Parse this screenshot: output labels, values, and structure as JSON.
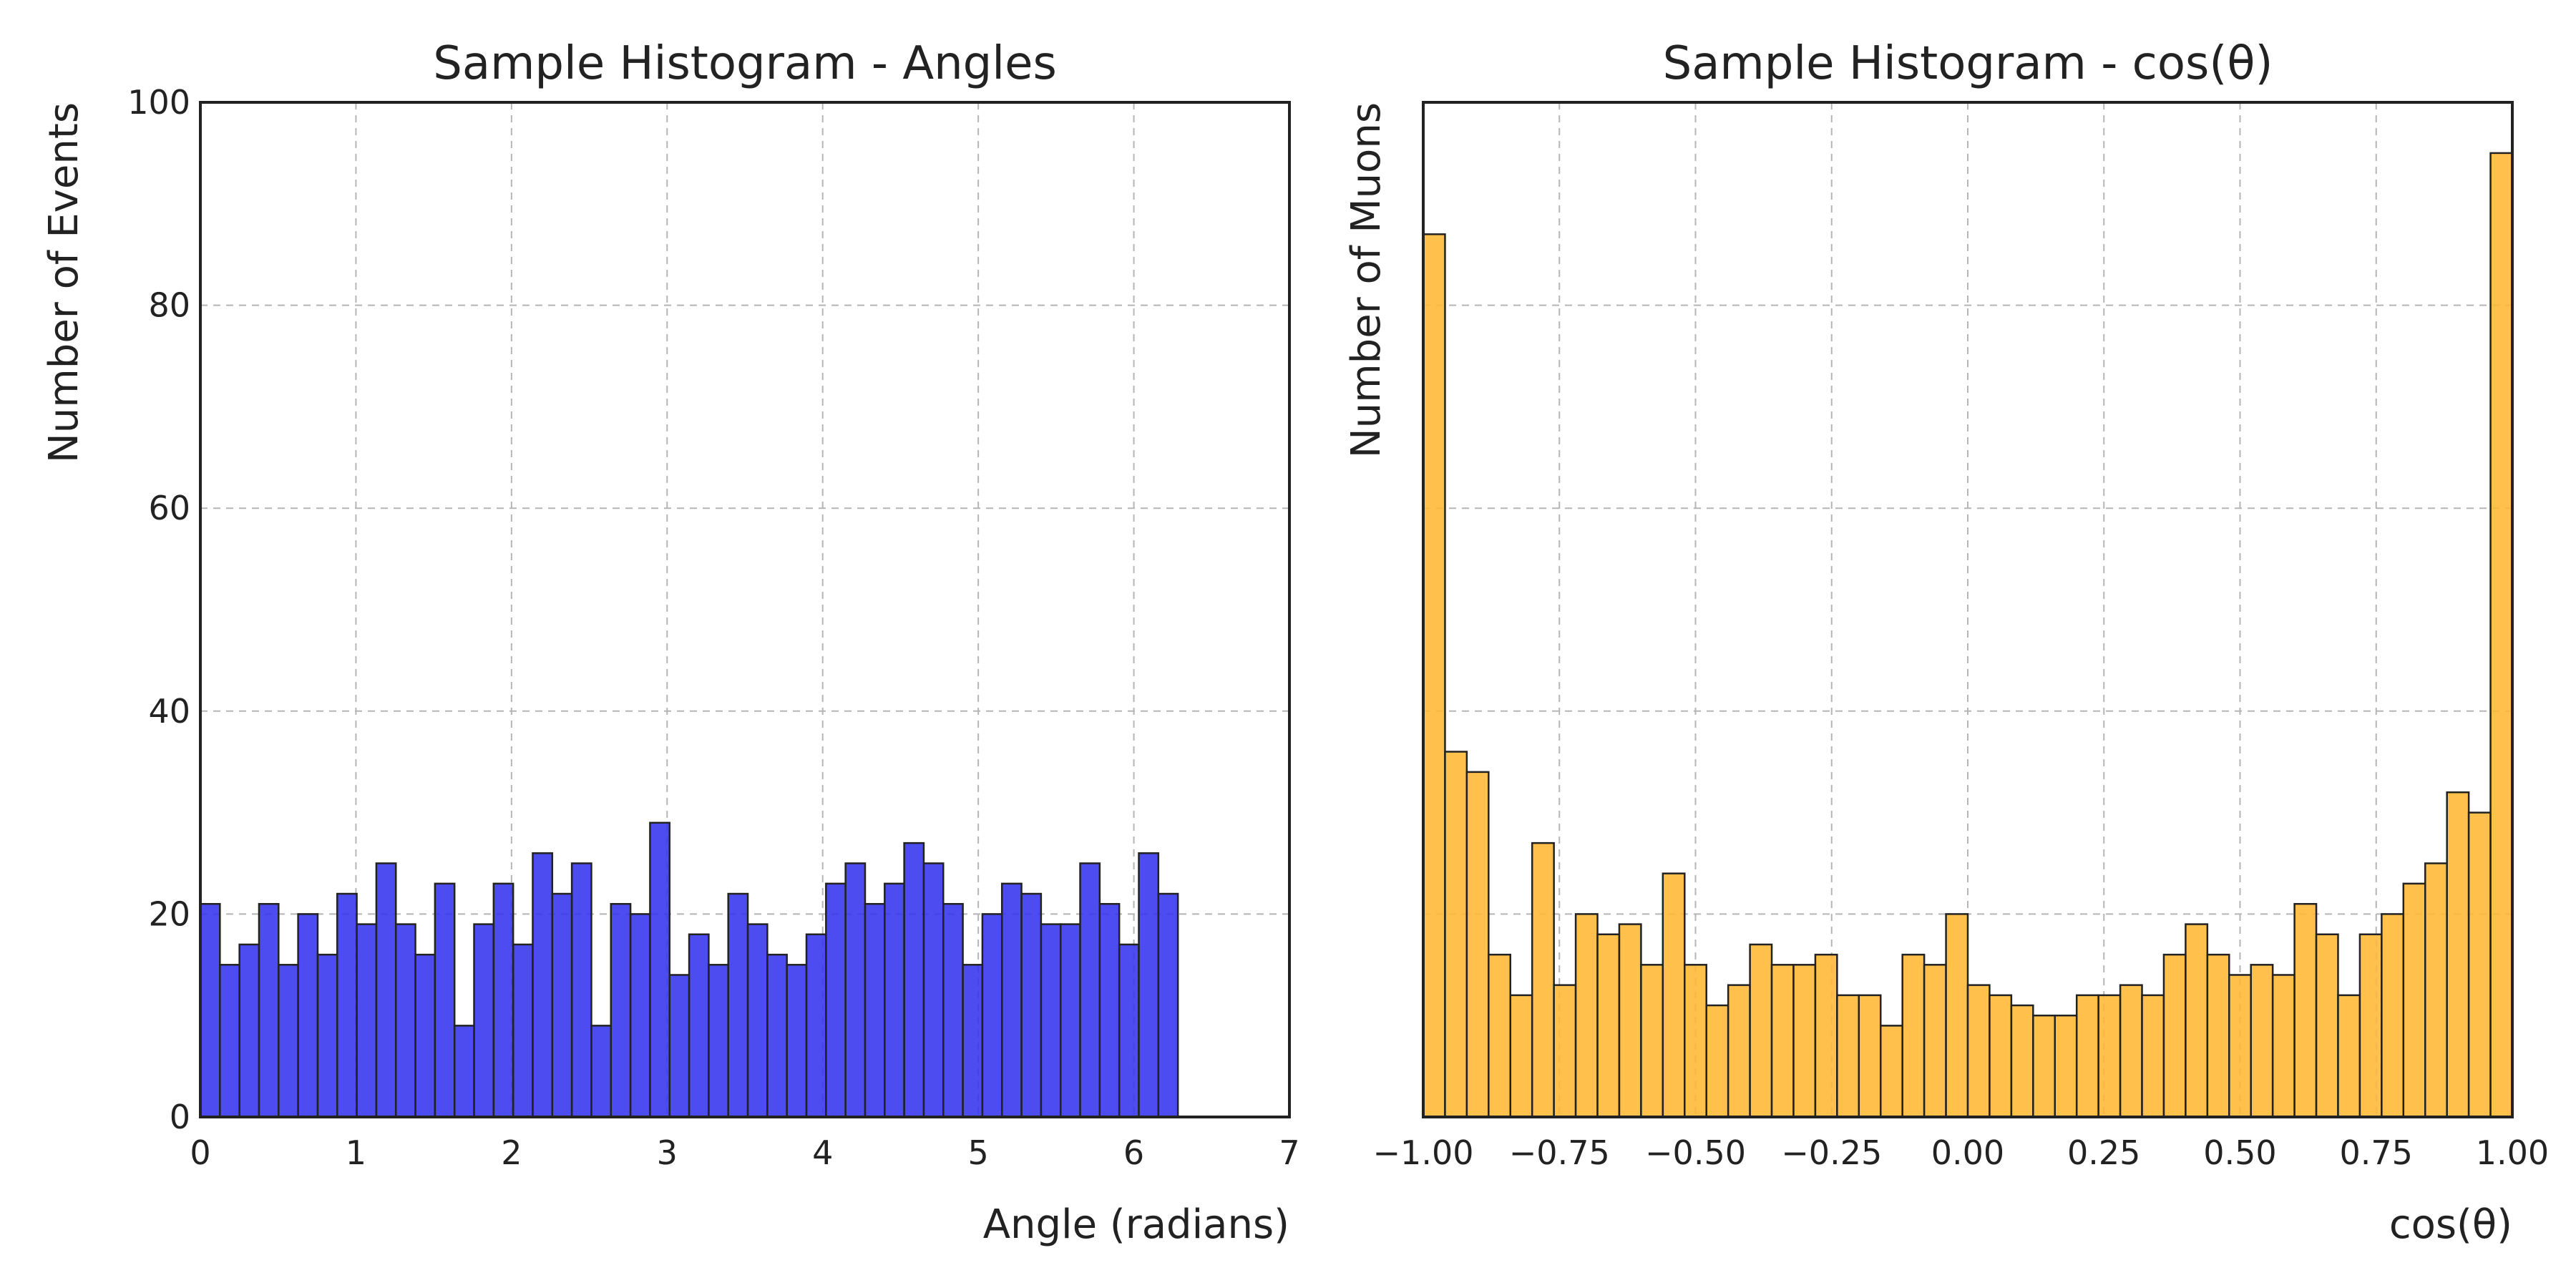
{
  "chart_data": [
    {
      "type": "bar",
      "title": "Sample Histogram - Angles",
      "xlabel": "Angle (radians)",
      "ylabel": "Number of Events",
      "xlim": [
        0,
        7
      ],
      "ylim": [
        0,
        100
      ],
      "xticks": [
        0,
        1,
        2,
        3,
        4,
        5,
        6,
        7
      ],
      "xtick_labels": [
        "0",
        "1",
        "2",
        "3",
        "4",
        "5",
        "6",
        "7"
      ],
      "yticks": [
        0,
        20,
        40,
        60,
        80,
        100
      ],
      "ytick_labels": [
        "0",
        "20",
        "40",
        "60",
        "80",
        "100"
      ],
      "show_ytick_labels": true,
      "grid": true,
      "color": "#3333ee",
      "edgecolor": "#222222",
      "bin_start": 0,
      "bin_end": 6.2832,
      "values": [
        21,
        15,
        17,
        21,
        15,
        20,
        16,
        22,
        19,
        25,
        19,
        16,
        23,
        9,
        19,
        23,
        17,
        26,
        22,
        25,
        9,
        21,
        20,
        29,
        14,
        18,
        15,
        22,
        19,
        16,
        15,
        18,
        23,
        25,
        21,
        23,
        27,
        25,
        21,
        15,
        20,
        23,
        22,
        19,
        19,
        25,
        21,
        17,
        26,
        22
      ]
    },
    {
      "type": "bar",
      "title": "Sample Histogram - cos(θ)",
      "xlabel": "cos(θ)",
      "ylabel": "Number of Muons",
      "xlim": [
        -1,
        1
      ],
      "ylim": [
        0,
        100
      ],
      "xticks": [
        -1,
        -0.75,
        -0.5,
        -0.25,
        0,
        0.25,
        0.5,
        0.75,
        1
      ],
      "xtick_labels": [
        "−1.00",
        "−0.75",
        "−0.50",
        "−0.25",
        "0.00",
        "0.25",
        "0.50",
        "0.75",
        "1.00"
      ],
      "yticks": [
        0,
        20,
        40,
        60,
        80,
        100
      ],
      "ytick_labels": [],
      "show_ytick_labels": false,
      "grid": true,
      "color": "#ffb833",
      "edgecolor": "#222222",
      "bin_start": -1,
      "bin_end": 1,
      "values": [
        87,
        36,
        34,
        16,
        12,
        27,
        13,
        20,
        18,
        19,
        15,
        24,
        15,
        11,
        13,
        17,
        15,
        15,
        16,
        12,
        12,
        9,
        16,
        15,
        20,
        13,
        12,
        11,
        10,
        10,
        12,
        12,
        13,
        12,
        16,
        19,
        16,
        14,
        15,
        14,
        21,
        18,
        12,
        18,
        20,
        23,
        25,
        32,
        30,
        95
      ]
    }
  ]
}
